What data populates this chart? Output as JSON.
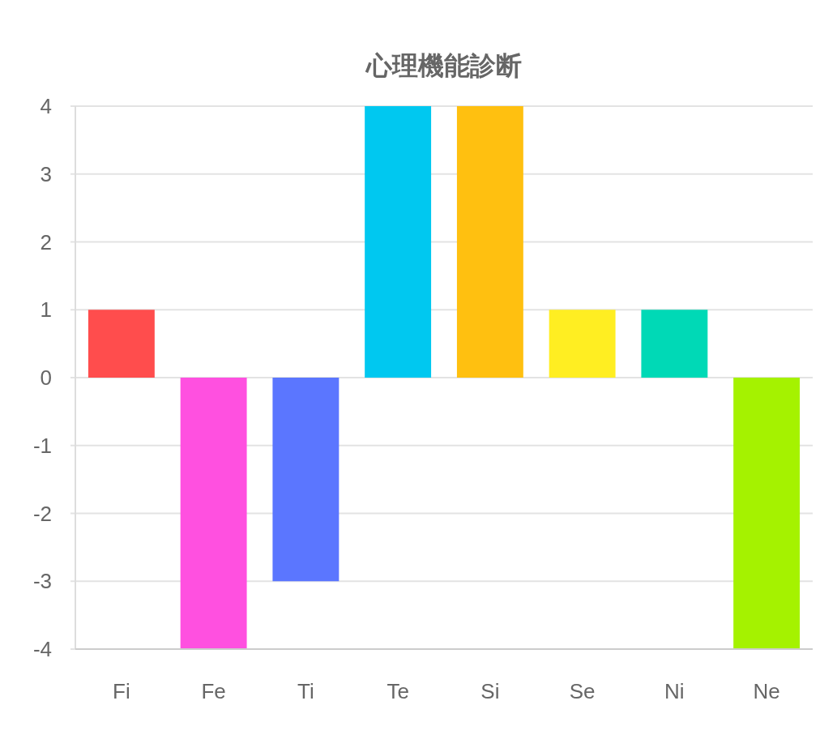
{
  "chart_data": {
    "type": "bar",
    "title": "心理機能診断",
    "categories": [
      "Fi",
      "Fe",
      "Ti",
      "Te",
      "Si",
      "Se",
      "Ni",
      "Ne"
    ],
    "values": [
      1,
      -4,
      -3,
      4,
      4,
      1,
      1,
      -4
    ],
    "colors": [
      "#ff4d4d",
      "#ff50e0",
      "#5b76ff",
      "#00c8f0",
      "#ffc010",
      "#ffee22",
      "#00d9b6",
      "#a5f200"
    ],
    "ylim": [
      -4,
      4
    ],
    "yticks": [
      -4,
      -3,
      -2,
      -1,
      0,
      1,
      2,
      3,
      4
    ],
    "grid": "y"
  }
}
